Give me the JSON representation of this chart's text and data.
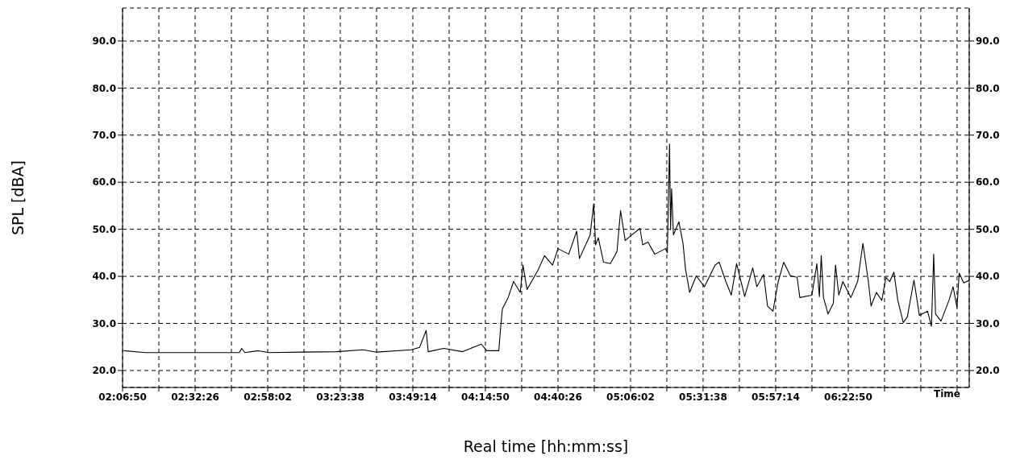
{
  "chart_data": {
    "type": "line",
    "xlabel": "Real time [hh:mm:ss]",
    "ylabel": "SPL [dBA]",
    "annotations": [
      "Time"
    ],
    "grid": true,
    "xlim": [
      2.11389,
      7.092
    ],
    "xticks": [
      {
        "value": 2.11389,
        "label": "02:06:50"
      },
      {
        "value": 2.32722,
        "label": null
      },
      {
        "value": 2.54056,
        "label": "02:32:26"
      },
      {
        "value": 2.75389,
        "label": null
      },
      {
        "value": 2.96722,
        "label": "02:58:02"
      },
      {
        "value": 3.18056,
        "label": null
      },
      {
        "value": 3.39389,
        "label": "03:23:38"
      },
      {
        "value": 3.60722,
        "label": null
      },
      {
        "value": 3.82056,
        "label": "03:49:14"
      },
      {
        "value": 4.03389,
        "label": null
      },
      {
        "value": 4.24722,
        "label": "04:14:50"
      },
      {
        "value": 4.46056,
        "label": null
      },
      {
        "value": 4.67389,
        "label": "04:40:26"
      },
      {
        "value": 4.88722,
        "label": null
      },
      {
        "value": 5.10056,
        "label": "05:06:02"
      },
      {
        "value": 5.31389,
        "label": null
      },
      {
        "value": 5.52722,
        "label": "05:31:38"
      },
      {
        "value": 5.74056,
        "label": null
      },
      {
        "value": 5.95389,
        "label": "05:57:14"
      },
      {
        "value": 6.16722,
        "label": null
      },
      {
        "value": 6.38056,
        "label": "06:22:50"
      },
      {
        "value": 6.59389,
        "label": null
      },
      {
        "value": 6.80722,
        "label": null
      },
      {
        "value": 7.02056,
        "label": null
      }
    ],
    "ylim": [
      16.4,
      97
    ],
    "yticks": [
      {
        "value": 20,
        "label": "20.0"
      },
      {
        "value": 30,
        "label": "30.0"
      },
      {
        "value": 40,
        "label": "40.0"
      },
      {
        "value": 50,
        "label": "50.0"
      },
      {
        "value": 60,
        "label": "60.0"
      },
      {
        "value": 70,
        "label": "70.0"
      },
      {
        "value": 80,
        "label": "80.0"
      },
      {
        "value": 90,
        "label": "90.0"
      }
    ],
    "y2lim": [
      16.4,
      97
    ],
    "y2ticks": [
      {
        "value": 20,
        "label": "20.0"
      },
      {
        "value": 30,
        "label": "30.0"
      },
      {
        "value": 40,
        "label": "40.0"
      },
      {
        "value": 50,
        "label": "50.0"
      },
      {
        "value": 60,
        "label": "60.0"
      },
      {
        "value": 70,
        "label": "70.0"
      },
      {
        "value": 80,
        "label": "80.0"
      },
      {
        "value": 90,
        "label": "90.0"
      }
    ],
    "series": [
      {
        "color": "#000000",
        "x": [
          2.121,
          2.248,
          2.801,
          2.814,
          2.833,
          2.912,
          2.975,
          3.164,
          3.37,
          3.528,
          3.607,
          3.812,
          3.86,
          3.899,
          3.911,
          4.002,
          4.113,
          4.223,
          4.255,
          4.326,
          4.334,
          4.347,
          4.381,
          4.413,
          4.452,
          4.468,
          4.492,
          4.555,
          4.595,
          4.642,
          4.674,
          4.737,
          4.784,
          4.8,
          4.863,
          4.884,
          4.895,
          4.911,
          4.942,
          4.982,
          5.021,
          5.042,
          5.069,
          5.108,
          5.156,
          5.172,
          5.203,
          5.243,
          5.306,
          5.317,
          5.33,
          5.336,
          5.342,
          5.353,
          5.385,
          5.409,
          5.424,
          5.448,
          5.487,
          5.535,
          5.598,
          5.622,
          5.661,
          5.693,
          5.724,
          5.772,
          5.819,
          5.843,
          5.883,
          5.906,
          5.938,
          5.969,
          6.001,
          6.041,
          6.08,
          6.096,
          6.167,
          6.196,
          6.211,
          6.222,
          6.235,
          6.262,
          6.293,
          6.306,
          6.325,
          6.349,
          6.396,
          6.436,
          6.467,
          6.499,
          6.515,
          6.546,
          6.578,
          6.602,
          6.625,
          6.649,
          6.672,
          6.704,
          6.728,
          6.767,
          6.799,
          6.847,
          6.87,
          6.883,
          6.894,
          6.926,
          6.973,
          6.997,
          7.02,
          7.033,
          7.06,
          7.092
        ],
        "values": [
          24.2,
          23.8,
          23.8,
          24.7,
          23.8,
          24.2,
          23.8,
          23.9,
          24.0,
          24.4,
          23.9,
          24.4,
          24.9,
          28.5,
          24.0,
          24.7,
          24.0,
          25.6,
          24.2,
          24.2,
          27.9,
          33.1,
          35.5,
          38.9,
          36.6,
          42.4,
          37.2,
          41.2,
          44.4,
          42.4,
          45.9,
          44.7,
          49.6,
          43.8,
          48.8,
          55.4,
          46.7,
          48.2,
          43.0,
          42.7,
          45.3,
          54.0,
          47.6,
          48.8,
          50.2,
          46.7,
          47.3,
          44.7,
          45.9,
          45.0,
          68.1,
          49.9,
          58.6,
          48.8,
          51.6,
          47.0,
          41.5,
          36.6,
          40.1,
          37.8,
          42.4,
          43.0,
          38.9,
          36.0,
          42.7,
          35.7,
          41.8,
          37.8,
          40.4,
          33.7,
          32.6,
          38.9,
          43.0,
          40.1,
          39.8,
          35.5,
          36.0,
          42.7,
          35.7,
          44.4,
          35.5,
          32.0,
          34.3,
          42.4,
          36.0,
          38.9,
          35.5,
          38.9,
          47.0,
          38.9,
          33.7,
          36.6,
          34.9,
          39.8,
          38.9,
          40.9,
          34.9,
          30.2,
          31.4,
          39.2,
          31.7,
          32.6,
          29.4,
          44.7,
          32.0,
          30.5,
          34.9,
          37.8,
          33.4,
          40.7,
          38.6,
          39.2
        ]
      }
    ]
  }
}
